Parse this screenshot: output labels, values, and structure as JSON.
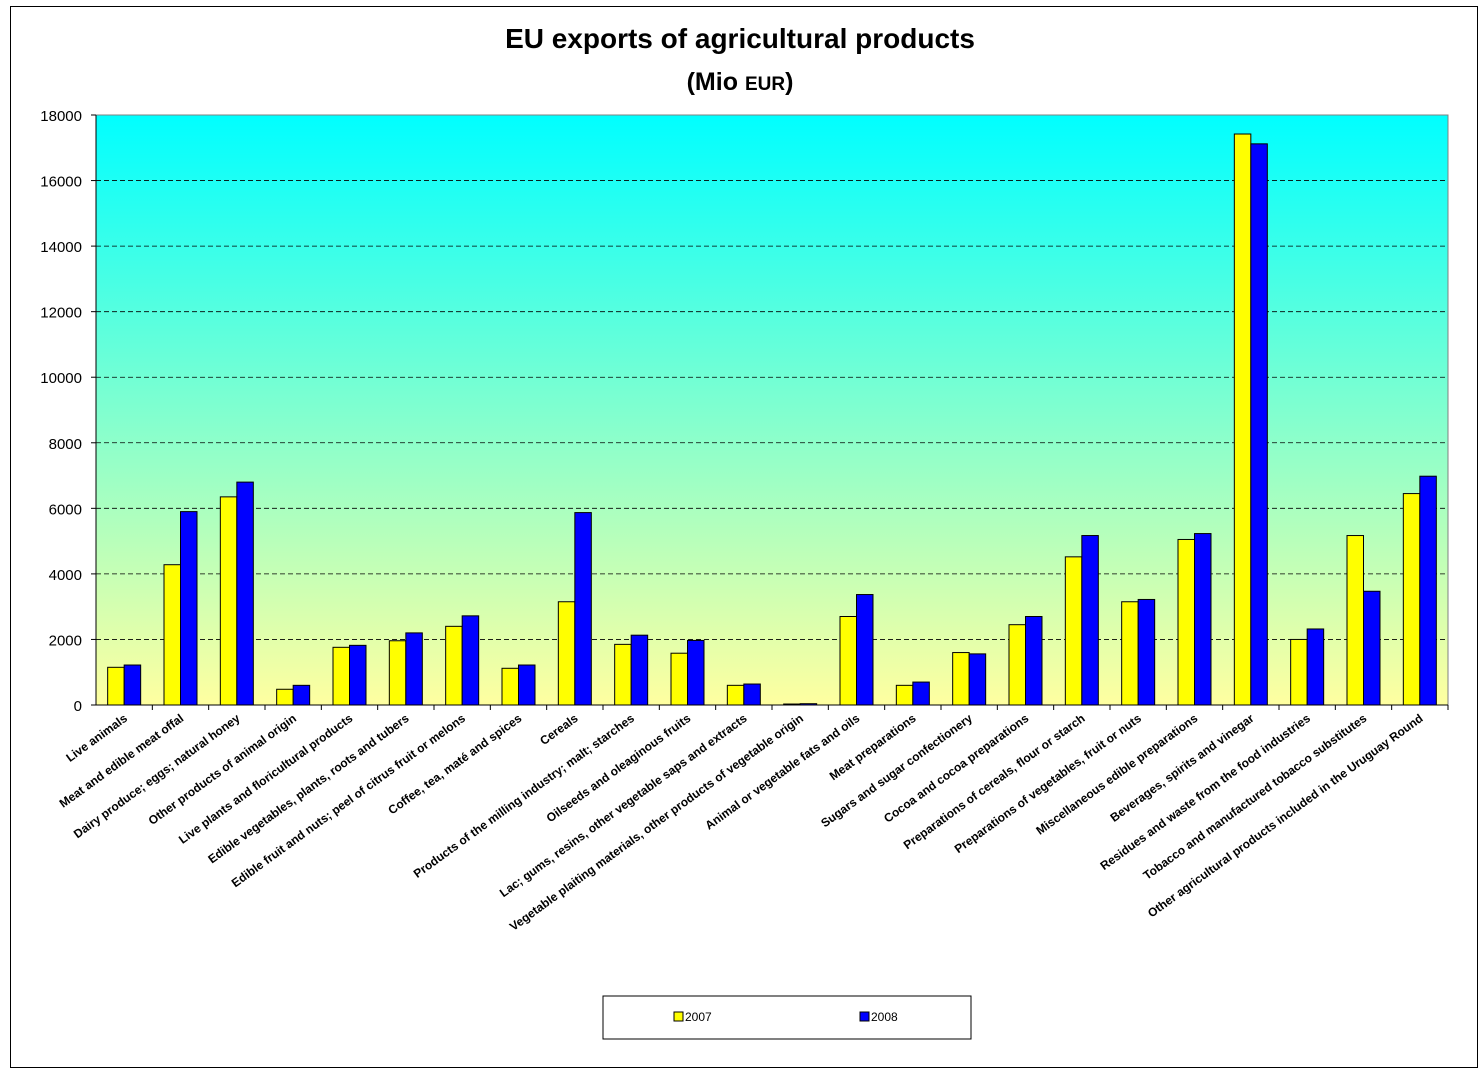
{
  "chart_data": {
    "type": "bar",
    "title": "EU exports of agricultural products",
    "subtitle_prefix": "(Mio ",
    "subtitle_unit": "EUR",
    "subtitle_suffix": ")",
    "xlabel": "",
    "ylabel": "",
    "ylim": [
      0,
      18000
    ],
    "yticks": [
      0,
      2000,
      4000,
      6000,
      8000,
      10000,
      12000,
      14000,
      16000,
      18000
    ],
    "grid": true,
    "legend_position": "bottom",
    "background_gradient": [
      "#00ffff",
      "#ffffa0"
    ],
    "categories": [
      "Live animals",
      "Meat and edible meat offal",
      "Dairy produce; eggs; natural honey",
      "Other products of animal origin",
      "Live plants and floricultural products",
      "Edible vegetables, plants, roots and tubers",
      "Edible fruit and nuts; peel of citrus fruit or melons",
      "Coffee, tea, maté and spices",
      "Cereals",
      "Products of the milling industry; malt; starches",
      "Oilseeds and oleaginous fruits",
      "Lac; gums, resins, other vegetable saps and extracts",
      "Vegetable plaiting materials, other products of vegetable origin",
      "Animal or vegetable fats and oils",
      "Meat preparations",
      "Sugars and sugar confectionery",
      "Cocoa and cocoa preparations",
      "Preparations of cereals, flour or starch",
      "Preparations of vegetables, fruit or nuts",
      "Miscellaneous edible preparations",
      "Beverages, spirits and vinegar",
      "Residues and waste from the food industries",
      "Tobacco and manufactured tobacco substitutes",
      "Other agricultural products included in the Uruguay Round"
    ],
    "series": [
      {
        "name": "2007",
        "color": "#ffff00",
        "values": [
          1150,
          4280,
          6350,
          480,
          1760,
          1960,
          2400,
          1120,
          3150,
          1850,
          1580,
          600,
          30,
          2700,
          600,
          1600,
          2450,
          4520,
          3150,
          5050,
          17420,
          2000,
          5170,
          6450
        ]
      },
      {
        "name": "2008",
        "color": "#0000ff",
        "values": [
          1220,
          5900,
          6800,
          600,
          1820,
          2200,
          2720,
          1220,
          5870,
          2130,
          1970,
          640,
          40,
          3370,
          700,
          1560,
          2700,
          5170,
          3220,
          5230,
          17120,
          2320,
          3470,
          6980
        ]
      }
    ]
  }
}
